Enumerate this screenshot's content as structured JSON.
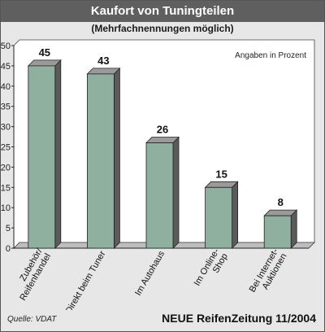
{
  "header": {
    "title": "Kaufort von Tuningteilen",
    "subtitle": "(Mehrfachnennungen möglich)"
  },
  "footer": {
    "source": "Quelle: VDAT",
    "publication": "NEUE ReifenZeitung 11/2004"
  },
  "chart_data": {
    "type": "bar",
    "title": "Kaufort von Tuningteilen",
    "subtitle": "(Mehrfachnennungen möglich)",
    "annotation": "Angaben in Prozent",
    "categories": [
      [
        "Zubehör/",
        "Reifenhandel"
      ],
      [
        "Direkt beim Tuner"
      ],
      [
        "Im Autohaus"
      ],
      [
        "Im Online-",
        "Shop"
      ],
      [
        "Bei Internet-",
        "Auktionen"
      ]
    ],
    "values": [
      45,
      43,
      26,
      15,
      8
    ],
    "ylim": [
      0,
      50
    ],
    "yticks": [
      0,
      5,
      10,
      15,
      20,
      25,
      30,
      35,
      40,
      45,
      50
    ],
    "xlabel": "",
    "ylabel": "",
    "grid": false,
    "colors": {
      "bar_front": "#8fb09e",
      "bar_side": "#5b5b5b",
      "bar_top": "#9a9a9a",
      "plot_bg": "#ffffff",
      "plot_floor": "#bdbdbd"
    }
  }
}
